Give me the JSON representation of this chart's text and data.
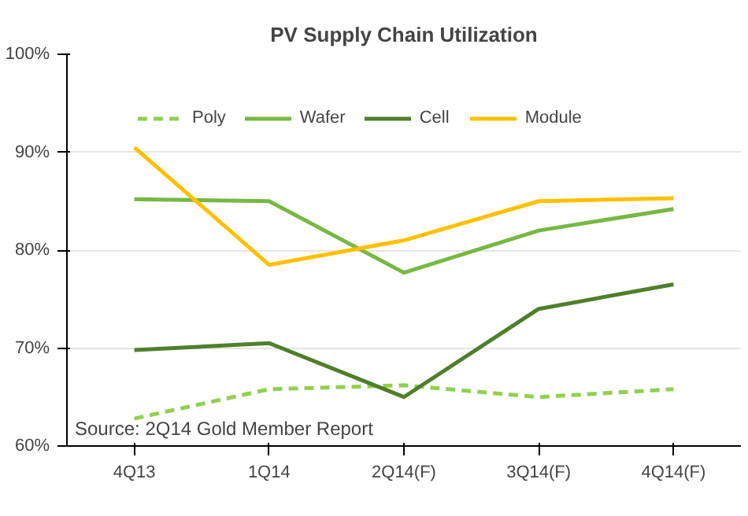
{
  "chart_data": {
    "type": "line",
    "title": "PV Supply Chain Utilization",
    "categories": [
      "4Q13",
      "1Q14",
      "2Q14(F)",
      "3Q14(F)",
      "4Q14(F)"
    ],
    "series": [
      {
        "name": "Poly",
        "color": "#92d050",
        "line_style": "dashed",
        "values": [
          62.8,
          65.8,
          66.2,
          65.0,
          65.8
        ]
      },
      {
        "name": "Wafer",
        "color": "#77b843",
        "values": [
          85.2,
          85.0,
          77.7,
          82.0,
          84.2
        ]
      },
      {
        "name": "Cell",
        "color": "#4f7f2a",
        "values": [
          69.8,
          70.5,
          65.0,
          74.0,
          76.5
        ]
      },
      {
        "name": "Module",
        "color": "#ffc000",
        "values": [
          90.5,
          78.5,
          81.0,
          85.0,
          85.3
        ]
      }
    ],
    "ylim": [
      60,
      100
    ],
    "yticks": [
      {
        "value": 60,
        "label": "60%"
      },
      {
        "value": 70,
        "label": "70%"
      },
      {
        "value": 80,
        "label": "80%"
      },
      {
        "value": 90,
        "label": "90%"
      },
      {
        "value": 100,
        "label": "100%"
      }
    ],
    "grid": "y",
    "legend": "top",
    "line_style": "solid",
    "marker": "none",
    "annotations": [
      "Source: 2Q14 Gold Member Report"
    ]
  }
}
